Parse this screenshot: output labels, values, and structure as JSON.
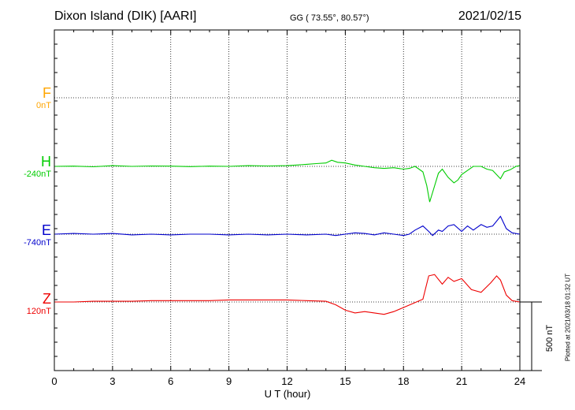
{
  "header": {
    "station": "Dixon Island (DIK)  [AARI]",
    "coords": "GG ( 73.55°,  80.57°)",
    "date": "2021/02/15"
  },
  "components": [
    {
      "letter": "F",
      "baseline": "0nT",
      "color": "#ffa500"
    },
    {
      "letter": "H",
      "baseline": "-240nT",
      "color": "#00cc00"
    },
    {
      "letter": "E",
      "baseline": "-740nT",
      "color": "#0000cc"
    },
    {
      "letter": "Z",
      "baseline": "120nT",
      "color": "#ee0000"
    }
  ],
  "scale_label": "500 nT",
  "plotted_note": "Plotted at 2021/03/18 01:32 UT",
  "chart_data": {
    "type": "line",
    "xlabel": "U T (hour)",
    "xlim": [
      0,
      24
    ],
    "xticks": [
      "0",
      "3",
      "6",
      "9",
      "12",
      "15",
      "18",
      "21",
      "24"
    ],
    "grid": true,
    "scale_bar_nT": 500,
    "series": [
      {
        "name": "H",
        "color": "#00cc00",
        "baseline_label": "-240nT",
        "x": [
          0,
          1,
          2,
          3,
          4,
          5,
          6,
          7,
          8,
          9,
          10,
          11,
          12,
          12.5,
          13,
          13.5,
          14,
          14.3,
          14.6,
          15,
          15.5,
          16,
          16.5,
          17,
          17.5,
          18,
          18.3,
          18.6,
          19,
          19.2,
          19.35,
          19.5,
          19.8,
          20,
          20.3,
          20.6,
          20.8,
          21,
          21.3,
          21.6,
          22,
          22.3,
          22.6,
          23,
          23.2,
          23.5,
          23.8,
          24
        ],
        "y": [
          0,
          2,
          -3,
          5,
          0,
          3,
          2,
          -2,
          2,
          0,
          5,
          3,
          5,
          10,
          15,
          20,
          25,
          45,
          30,
          25,
          10,
          0,
          -10,
          -15,
          -10,
          -20,
          -15,
          0,
          -40,
          -140,
          -260,
          -190,
          -50,
          -20,
          -80,
          -120,
          -100,
          -60,
          -30,
          0,
          0,
          -20,
          -30,
          -90,
          -40,
          -25,
          0,
          5
        ]
      },
      {
        "name": "E",
        "color": "#0000cc",
        "baseline_label": "-740nT",
        "x": [
          0,
          1,
          2,
          3,
          4,
          5,
          6,
          7,
          8,
          9,
          10,
          11,
          12,
          13,
          14,
          14.5,
          15,
          15.5,
          16,
          16.5,
          17,
          17.5,
          18,
          18.3,
          18.6,
          19,
          19.3,
          19.5,
          19.8,
          20,
          20.3,
          20.6,
          21,
          21.3,
          21.6,
          22,
          22.3,
          22.6,
          23,
          23.3,
          23.6,
          24
        ],
        "y": [
          0,
          5,
          0,
          5,
          -5,
          0,
          -5,
          0,
          0,
          -5,
          0,
          -5,
          0,
          -5,
          0,
          -10,
          0,
          10,
          5,
          -5,
          10,
          0,
          -10,
          0,
          30,
          60,
          20,
          -10,
          30,
          20,
          60,
          70,
          20,
          60,
          30,
          70,
          50,
          60,
          130,
          40,
          10,
          0
        ]
      },
      {
        "name": "Z",
        "color": "#ee0000",
        "baseline_label": "120nT",
        "x": [
          0,
          1,
          2,
          3,
          4,
          5,
          6,
          7,
          8,
          9,
          10,
          11,
          12,
          13,
          14,
          14.5,
          15,
          15.5,
          16,
          16.5,
          17,
          17.5,
          18,
          18.5,
          19,
          19.3,
          19.6,
          20,
          20.3,
          20.6,
          21,
          21.5,
          22,
          22.5,
          22.8,
          23,
          23.3,
          23.6,
          24
        ],
        "y": [
          0,
          0,
          5,
          5,
          5,
          10,
          10,
          10,
          10,
          15,
          15,
          15,
          15,
          10,
          5,
          -20,
          -60,
          -80,
          -70,
          -80,
          -90,
          -70,
          -40,
          -10,
          20,
          190,
          200,
          130,
          180,
          150,
          170,
          90,
          70,
          140,
          190,
          160,
          50,
          10,
          0
        ]
      }
    ]
  }
}
